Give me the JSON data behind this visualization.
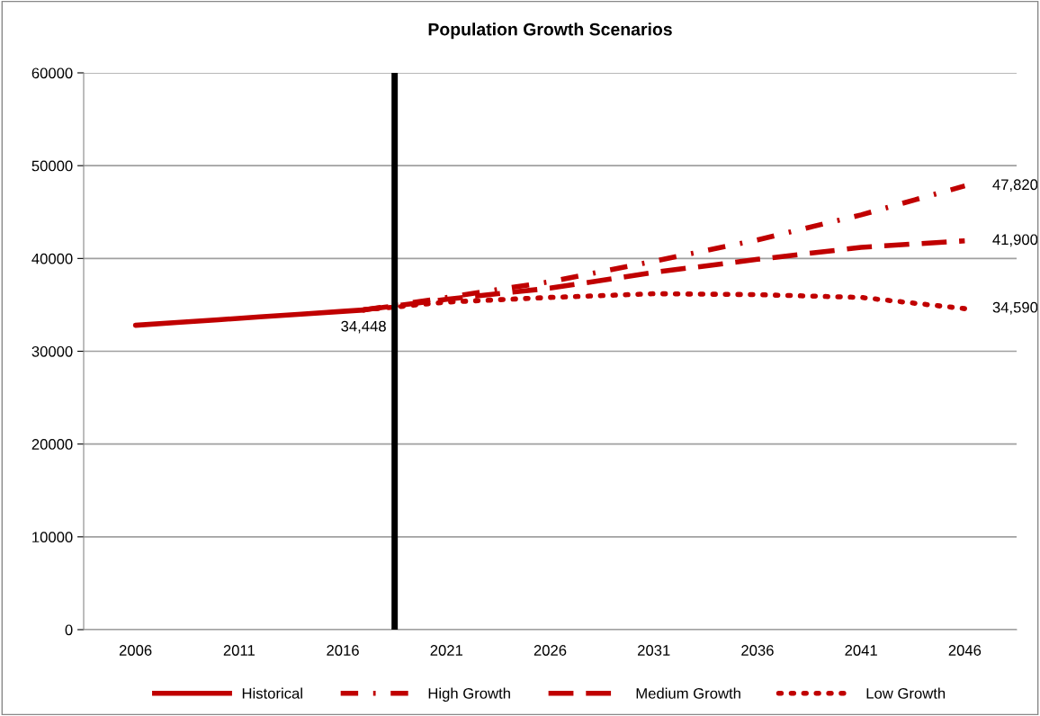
{
  "chart_data": {
    "type": "line",
    "title": "Population Growth Scenarios",
    "xlim": [
      2003.5,
      2048.5
    ],
    "xticks": [
      2006,
      2011,
      2016,
      2021,
      2026,
      2031,
      2036,
      2041,
      2046
    ],
    "ylim": [
      0,
      60000
    ],
    "yticks": [
      0,
      10000,
      20000,
      30000,
      40000,
      50000,
      60000
    ],
    "grid": "y",
    "legend": "bottom",
    "series": [
      {
        "name": "Historical",
        "color": "#c00000",
        "line_style": "solid",
        "x": [
          2006,
          2008,
          2010,
          2012,
          2014,
          2016,
          2017
        ],
        "values": [
          32800,
          33100,
          33400,
          33700,
          34000,
          34300,
          34448
        ],
        "value_labels": [
          null,
          null,
          null,
          null,
          null,
          null,
          "34,448"
        ]
      },
      {
        "name": "High Growth",
        "color": "#c00000",
        "line_style": "dashdot",
        "x": [
          2017,
          2021,
          2026,
          2031,
          2036,
          2041,
          2046
        ],
        "values": [
          34448,
          35800,
          37500,
          39700,
          42000,
          44700,
          47820
        ],
        "value_labels": [
          null,
          null,
          null,
          null,
          null,
          null,
          "47,820"
        ]
      },
      {
        "name": "Medium Growth",
        "color": "#c00000",
        "line_style": "dashed",
        "x": [
          2017,
          2021,
          2026,
          2031,
          2036,
          2041,
          2046
        ],
        "values": [
          34448,
          35600,
          36800,
          38500,
          39900,
          41200,
          41900
        ],
        "value_labels": [
          null,
          null,
          null,
          null,
          null,
          null,
          "41,900"
        ]
      },
      {
        "name": "Low Growth",
        "color": "#c00000",
        "line_style": "dotted",
        "x": [
          2017,
          2021,
          2026,
          2031,
          2036,
          2041,
          2046
        ],
        "values": [
          34448,
          35300,
          35800,
          36200,
          36100,
          35800,
          34590
        ],
        "value_labels": [
          null,
          null,
          null,
          null,
          null,
          null,
          "34,590"
        ]
      }
    ],
    "ref_lines": [
      {
        "axis": "x",
        "value": 2018.5,
        "color": "#000000"
      }
    ]
  }
}
